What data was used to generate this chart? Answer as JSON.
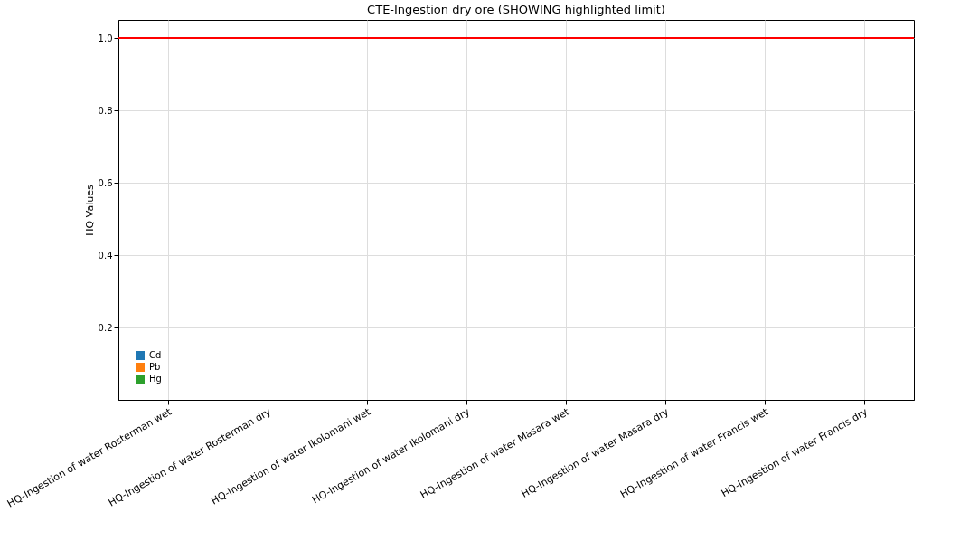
{
  "chart_data": {
    "type": "bar",
    "title": "CTE-Ingestion dry ore (SHOWING highlighted limit)",
    "ylabel": "HQ Values",
    "categories": [
      "HQ-Ingestion of water Rosterman wet",
      "HQ-Ingestion of water Rosterman dry",
      "HQ-Ingestion of water Ikolomani wet",
      "HQ-Ingestion of water Ikolomani dry",
      "HQ-Ingestion of water Masara wet",
      "HQ-Ingestion of water Masara dry",
      "HQ-Ingestion of water Francis wet",
      "HQ-Ingestion of water Francis dry"
    ],
    "series": [
      {
        "name": "Cd",
        "color": "#1f77b4",
        "values": [
          0,
          0,
          0,
          0,
          0,
          0,
          0,
          0
        ]
      },
      {
        "name": "Pb",
        "color": "#ff7f0e",
        "values": [
          0,
          0,
          0,
          0,
          0,
          0,
          0,
          0
        ]
      },
      {
        "name": "Hg",
        "color": "#2ca02c",
        "values": [
          0,
          0,
          0,
          0,
          0,
          0,
          0,
          0
        ]
      }
    ],
    "ylim": [
      0,
      1.05
    ],
    "yticks": [
      0.2,
      0.4,
      0.6,
      0.8,
      {
        "value": 1.0,
        "label": "1.0"
      }
    ],
    "ref_lines": [
      {
        "axis": "y",
        "value": 1.0,
        "color": "#ff0000"
      }
    ],
    "grid": true,
    "legend": "bottom left"
  }
}
